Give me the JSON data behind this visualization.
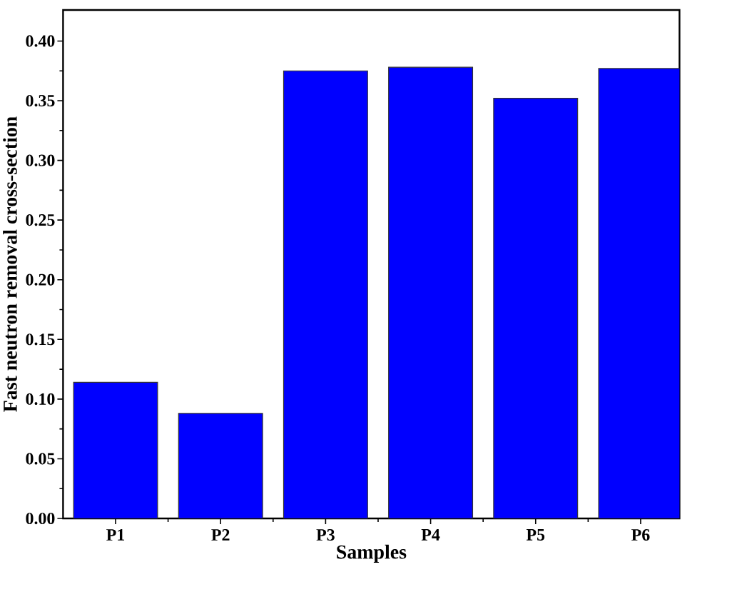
{
  "chart_data": {
    "type": "bar",
    "xlabel": "Samples",
    "ylabel": "Fast neutron removal cross-section",
    "categories": [
      "P1",
      "P2",
      "P3",
      "P4",
      "P5",
      "P6"
    ],
    "values": [
      0.114,
      0.088,
      0.375,
      0.378,
      0.352,
      0.377
    ],
    "color": "#0000ff",
    "ylim": [
      0,
      0.426
    ],
    "yticks": [
      {
        "value": 0,
        "label": "0.00"
      },
      0.05,
      {
        "value": 0.1,
        "label": "0.10"
      },
      0.15,
      {
        "value": 0.2,
        "label": "0.20"
      },
      0.25,
      {
        "value": 0.3,
        "label": "0.30"
      },
      0.35,
      {
        "value": 0.4,
        "label": "0.40"
      }
    ]
  }
}
